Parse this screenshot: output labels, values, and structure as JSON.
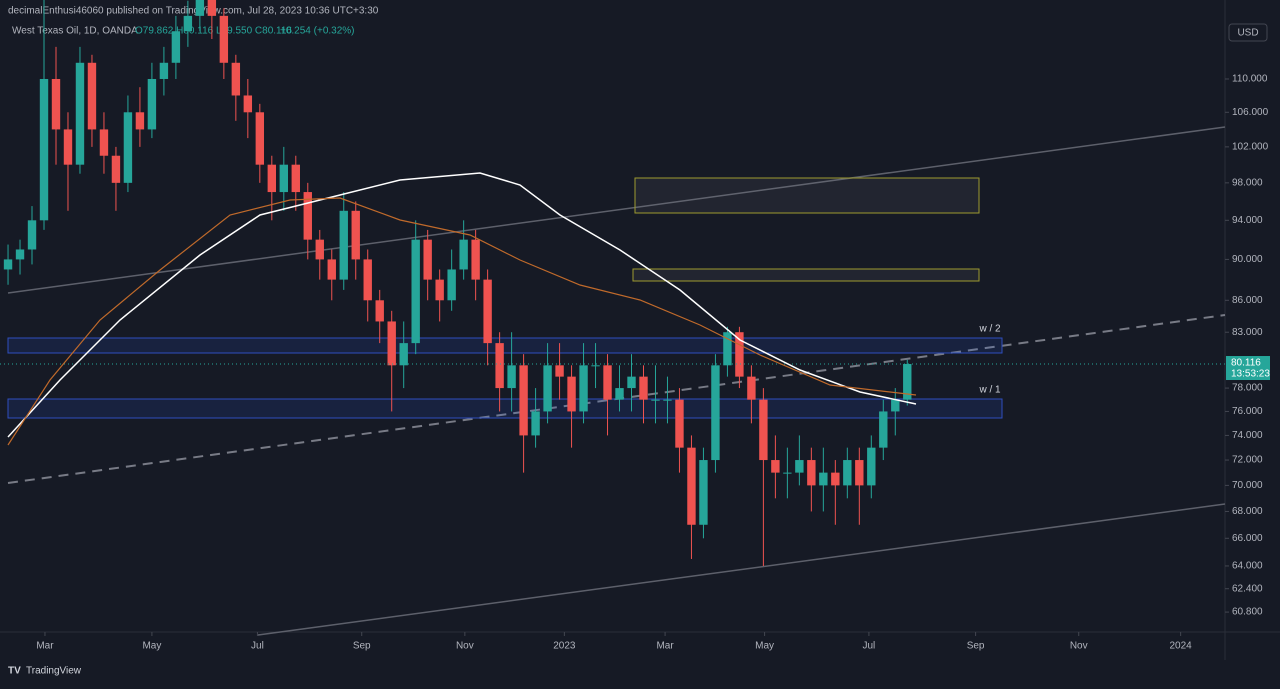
{
  "header": {
    "publisher": "decimalEnthusi46060 published on TradingView.com, Jul 28, 2023 10:36 UTC+3:30",
    "legend": "West Texas Oil, 1D, OANDA",
    "ohlc": "O79.862 H80.116 L79.550 C80.116",
    "change": "+0.254 (+0.32%)",
    "currency": "USD"
  },
  "chart_data": {
    "type": "candlestick",
    "up_color": "#26a69a",
    "down_color": "#ef5350",
    "log_scale": true,
    "grid": false,
    "open": [
      89,
      90,
      91,
      94,
      110,
      104,
      100,
      112,
      104,
      101,
      98,
      106,
      104,
      110,
      112,
      116,
      118,
      121,
      118,
      112,
      108,
      106,
      100,
      97,
      100,
      97,
      92,
      90,
      88,
      95,
      90,
      86,
      84,
      80,
      82,
      92,
      88,
      86,
      89,
      92,
      88,
      82,
      78,
      80,
      74,
      76,
      80,
      79,
      76,
      80,
      80,
      77,
      78,
      79,
      77,
      77,
      77,
      73,
      67,
      72,
      80,
      83,
      79,
      77,
      72,
      71,
      71,
      72,
      70,
      71,
      70,
      72,
      70,
      73,
      76,
      77
    ],
    "high": [
      91.5,
      92,
      95.5,
      123,
      114,
      106,
      114,
      113,
      106,
      102,
      108,
      109,
      112,
      114,
      118,
      120,
      124,
      122,
      119,
      113,
      110,
      107,
      101,
      102,
      101,
      98,
      93,
      91,
      97,
      96,
      91,
      87,
      85,
      84,
      94,
      93,
      89,
      91,
      94,
      93,
      89,
      83,
      83,
      81,
      78,
      82,
      82,
      80,
      82,
      82,
      81,
      80,
      81,
      80,
      80,
      79,
      78,
      74,
      73,
      81,
      83.5,
      83.5,
      80,
      78,
      74,
      73,
      74,
      73,
      73,
      72,
      73,
      73,
      74,
      77,
      78,
      80.5
    ],
    "low": [
      87.5,
      88.5,
      89.5,
      93,
      100,
      95,
      99,
      102,
      99,
      95,
      97,
      102,
      103,
      108,
      110,
      114,
      116,
      115,
      110,
      105,
      103,
      98,
      94,
      95,
      95,
      90,
      88,
      86,
      87,
      88,
      84,
      82,
      76,
      78,
      81,
      86,
      84,
      85,
      88,
      86,
      80,
      76,
      76,
      71,
      73,
      75,
      77,
      73,
      75,
      78,
      74,
      76,
      76,
      75,
      75,
      75,
      71,
      64.5,
      66,
      71,
      79,
      78,
      75,
      64,
      69,
      69,
      70,
      68,
      68,
      67,
      69,
      67,
      69,
      72,
      74,
      76.5
    ],
    "close": [
      90,
      91,
      94,
      110,
      104,
      100,
      112,
      104,
      101,
      98,
      106,
      104,
      110,
      112,
      116,
      118,
      121,
      118,
      112,
      108,
      106,
      100,
      97,
      100,
      97,
      92,
      90,
      88,
      95,
      90,
      86,
      84,
      80,
      82,
      92,
      88,
      86,
      89,
      92,
      88,
      82,
      78,
      80,
      74,
      76,
      80,
      79,
      76,
      80,
      80,
      77,
      78,
      79,
      77,
      77,
      77,
      73,
      67,
      72,
      80,
      83,
      79,
      77,
      72,
      71,
      71,
      72,
      70,
      71,
      70,
      72,
      70,
      73,
      76,
      77,
      80.116
    ],
    "last_label": "80.116",
    "countdown": "13:53:23",
    "zone_labels": [
      "w / 2",
      "w / 1"
    ],
    "ylim": [
      59.6,
      120.1
    ],
    "yticks": [
      {
        "value": 110,
        "label": "110.000"
      },
      {
        "value": 106,
        "label": "106.000"
      },
      {
        "value": 102,
        "label": "102.000"
      },
      {
        "value": 98,
        "label": "98.000"
      },
      {
        "value": 94,
        "label": "94.000"
      },
      {
        "value": 90,
        "label": "90.000"
      },
      {
        "value": 86,
        "label": "86.000"
      },
      {
        "value": 83,
        "label": "83.000"
      },
      {
        "value": 78,
        "label": "78.000"
      },
      {
        "value": 76,
        "label": "76.000"
      },
      {
        "value": 74,
        "label": "74.000"
      },
      {
        "value": 72,
        "label": "72.000"
      },
      {
        "value": 70,
        "label": "70.000"
      },
      {
        "value": 68,
        "label": "68.000"
      },
      {
        "value": 66,
        "label": "66.000"
      },
      {
        "value": 64,
        "label": "64.000"
      },
      {
        "value": 62.4,
        "label": "62.400"
      },
      {
        "value": 60.8,
        "label": "60.800"
      }
    ],
    "xlim": [
      -0.67,
      101.5
    ],
    "xticks": [
      {
        "value": 3.08,
        "label": "Mar"
      },
      {
        "value": 12.0,
        "label": "May"
      },
      {
        "value": 20.8,
        "label": "Jul"
      },
      {
        "value": 29.5,
        "label": "Sep"
      },
      {
        "value": 38.1,
        "label": "Nov"
      },
      {
        "value": 46.4,
        "label": "2023"
      },
      {
        "value": 54.8,
        "label": "Mar"
      },
      {
        "value": 63.1,
        "label": "May"
      },
      {
        "value": 71.8,
        "label": "Jul"
      },
      {
        "value": 80.7,
        "label": "Sep"
      },
      {
        "value": 89.3,
        "label": "Nov"
      },
      {
        "value": 97.8,
        "label": "2024"
      }
    ]
  },
  "footer": {
    "brand": "TradingView"
  }
}
